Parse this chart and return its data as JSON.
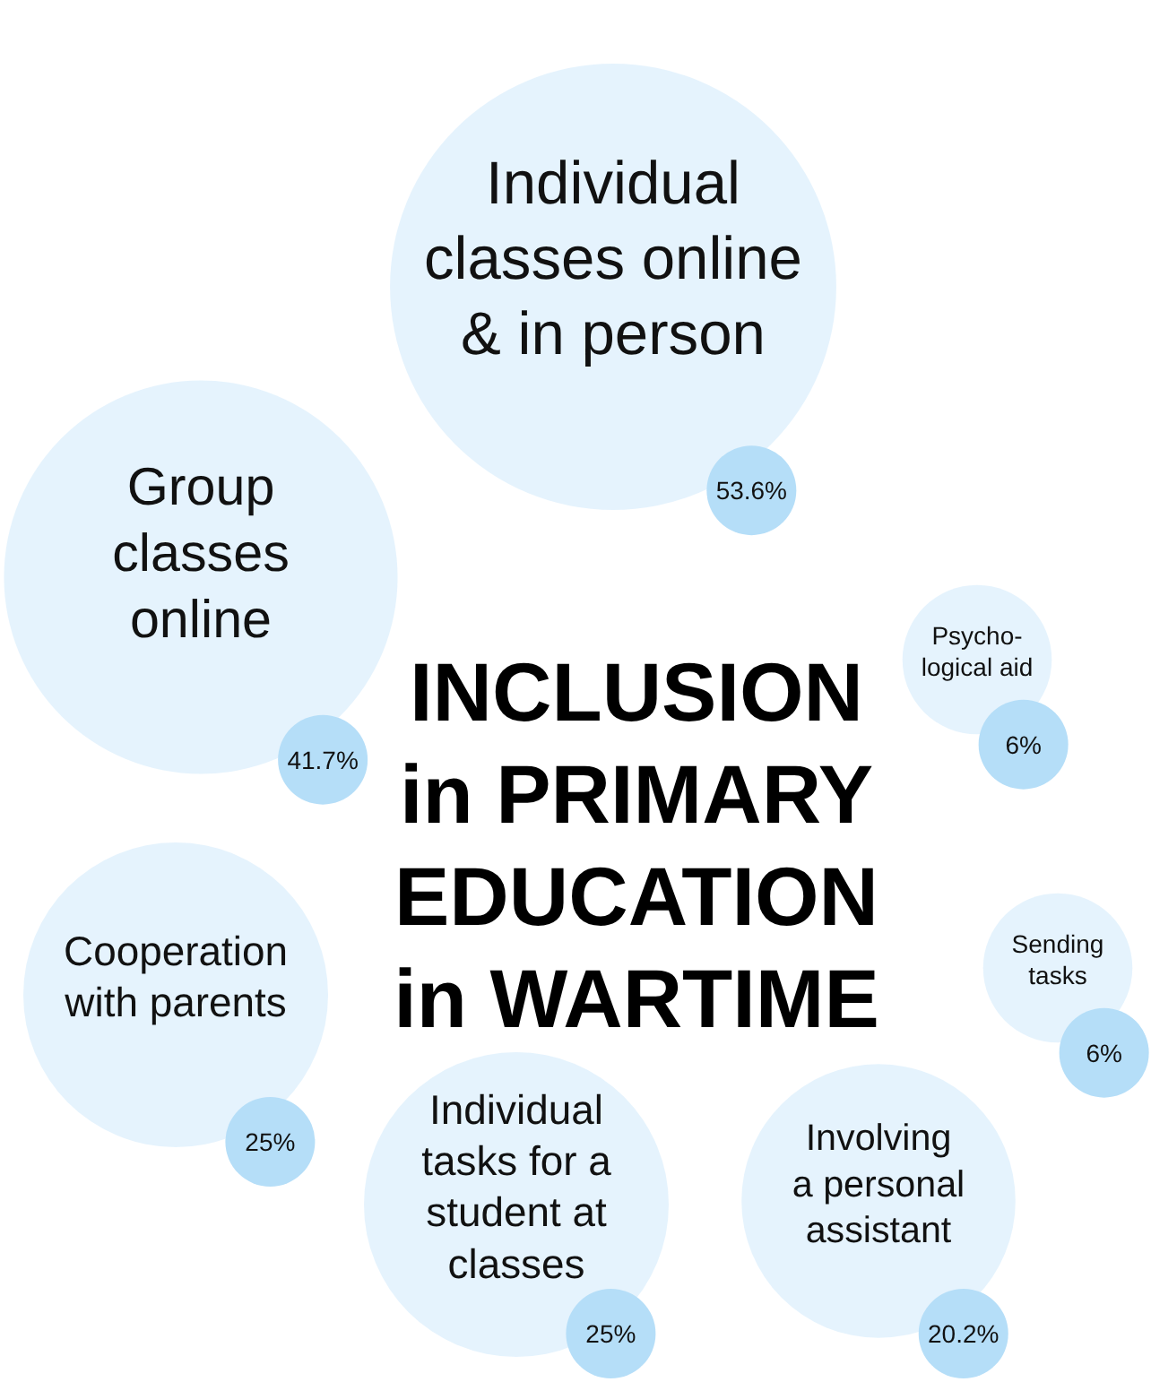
{
  "chart_data": {
    "type": "other",
    "title": "INCLUSION\nin PRIMARY\nEDUCATION\nin WARTIME",
    "categories": [
      "Individual\nclasses online\n& in person",
      "Group\nclasses\nonline",
      "Psycho-\nlogical aid",
      "Sending\ntasks",
      "Cooperation\nwith parents",
      "Individual\ntasks for a\nstudent at\nclasses",
      "Involving\na personal\nassistant"
    ],
    "values": [
      53.6,
      41.7,
      6,
      6,
      25,
      25,
      20.2
    ],
    "value_labels": [
      "53.6%",
      "41.7%",
      "6%",
      "6%",
      "25%",
      "25%",
      "20.2%"
    ],
    "color": "#b5def8"
  }
}
